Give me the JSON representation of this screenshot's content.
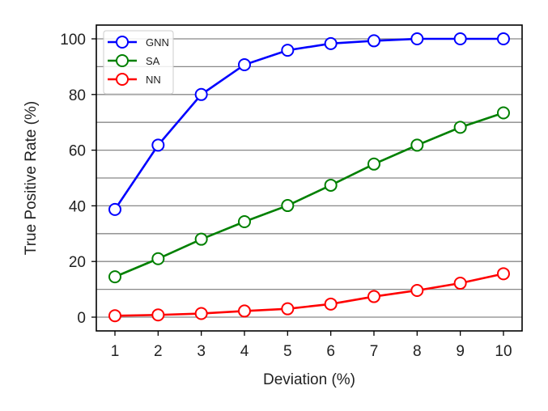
{
  "chart_data": {
    "type": "line",
    "title": "",
    "xlabel": "Deviation (%)",
    "ylabel": "True Positive Rate (%)",
    "x": [
      1,
      2,
      3,
      4,
      5,
      6,
      7,
      8,
      9,
      10
    ],
    "xticks": [
      "1",
      "2",
      "3",
      "4",
      "5",
      "6",
      "7",
      "8",
      "9",
      "10"
    ],
    "yticks": [
      "0",
      "20",
      "40",
      "60",
      "80",
      "100"
    ],
    "xlim": [
      0.5,
      10.45
    ],
    "ylim": [
      -5,
      105
    ],
    "grid": "horizontal lines every 10",
    "legend_position": "upper left",
    "series": [
      {
        "name": "GNN",
        "color": "#0000ff",
        "marker": "open-circle",
        "values": [
          38.7,
          61.8,
          80.0,
          90.7,
          95.9,
          98.3,
          99.3,
          100,
          100,
          100
        ]
      },
      {
        "name": "SA",
        "color": "#008000",
        "marker": "open-circle",
        "values": [
          14.5,
          21.0,
          28.0,
          34.3,
          40.1,
          47.4,
          55.0,
          61.8,
          68.2,
          73.4
        ]
      },
      {
        "name": "NN",
        "color": "#ff0000",
        "marker": "open-circle",
        "values": [
          0.5,
          0.8,
          1.3,
          2.2,
          3.0,
          4.7,
          7.4,
          9.6,
          12.2,
          15.6
        ]
      }
    ]
  }
}
